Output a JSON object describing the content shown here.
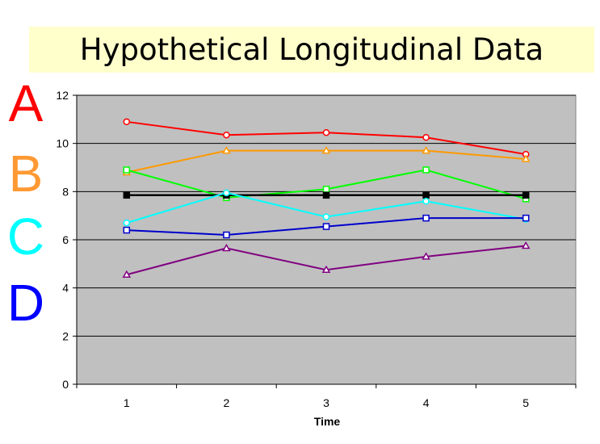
{
  "header": {
    "title": "Hypothetical Longitudinal Data"
  },
  "side_labels": [
    {
      "text": "A",
      "color": "#ff0000"
    },
    {
      "text": "B",
      "color": "#ff9933"
    },
    {
      "text": "C",
      "color": "#00ffff"
    },
    {
      "text": "D",
      "color": "#0000ff"
    }
  ],
  "chart_data": {
    "type": "line",
    "title": "",
    "xlabel": "Time",
    "ylabel": "",
    "x": [
      1,
      2,
      3,
      4,
      5
    ],
    "xlim": [
      0.5,
      5.5
    ],
    "ylim": [
      0,
      12
    ],
    "yticks": [
      0,
      2,
      4,
      6,
      8,
      10,
      12
    ],
    "grid": "horizontal",
    "plot_background": "#c0c0c0",
    "series": [
      {
        "color": "#ff0000",
        "marker": "circle",
        "values": [
          10.9,
          10.35,
          10.45,
          10.25,
          9.55
        ]
      },
      {
        "color": "#ff9900",
        "marker": "triangle",
        "values": [
          8.8,
          9.7,
          9.7,
          9.7,
          9.35
        ]
      },
      {
        "color": "#00ff00",
        "marker": "square",
        "values": [
          8.9,
          7.75,
          8.1,
          8.9,
          7.7
        ]
      },
      {
        "color": "#000000",
        "marker": "square",
        "values": [
          7.85,
          7.85,
          7.85,
          7.85,
          7.85
        ]
      },
      {
        "color": "#00ffff",
        "marker": "circle",
        "values": [
          6.7,
          7.95,
          6.95,
          7.6,
          6.85
        ]
      },
      {
        "color": "#0000cc",
        "marker": "square",
        "values": [
          6.4,
          6.2,
          6.55,
          6.9,
          6.9
        ]
      },
      {
        "color": "#800080",
        "marker": "triangle",
        "values": [
          4.55,
          5.65,
          4.75,
          5.3,
          5.75
        ]
      }
    ]
  }
}
